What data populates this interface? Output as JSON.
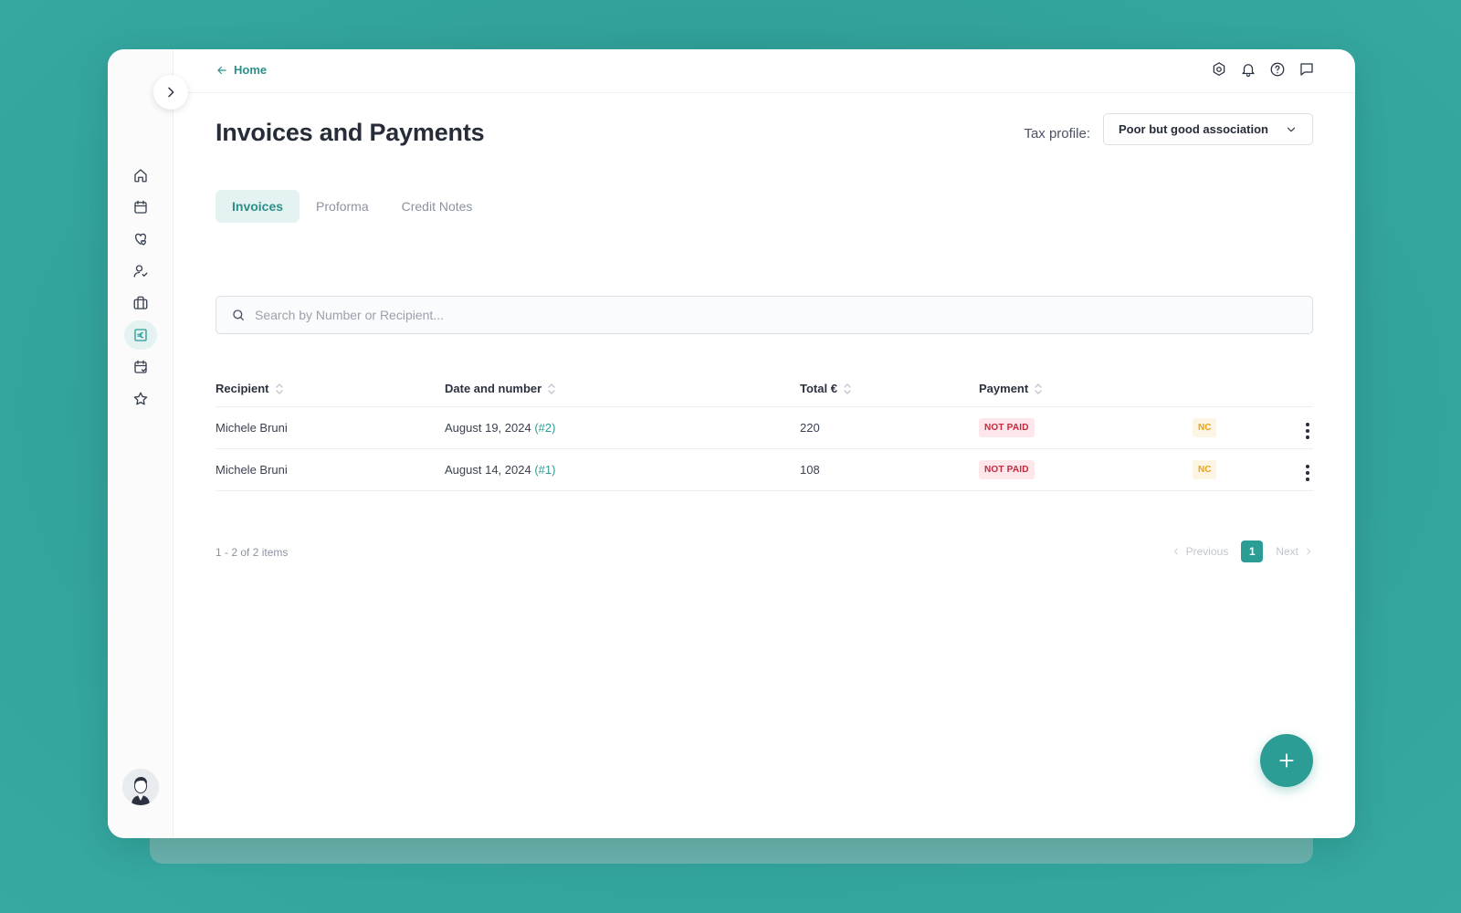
{
  "nav": {
    "home_label": "Home"
  },
  "page": {
    "title": "Invoices and Payments",
    "tax_profile_label": "Tax profile:",
    "tax_profile_value": "Poor but good association"
  },
  "tabs": [
    {
      "label": "Invoices",
      "active": true
    },
    {
      "label": "Proforma",
      "active": false
    },
    {
      "label": "Credit Notes",
      "active": false
    }
  ],
  "search": {
    "placeholder": "Search by Number or Recipient..."
  },
  "table": {
    "headers": [
      "Recipient",
      "Date and number",
      "Total €",
      "Payment"
    ],
    "rows": [
      {
        "recipient": "Michele Bruni",
        "date": "August 19, 2024",
        "number": "(#2)",
        "total": "220",
        "payment": "NOT PAID",
        "tag": "NC"
      },
      {
        "recipient": "Michele Bruni",
        "date": "August 14, 2024",
        "number": "(#1)",
        "total": "108",
        "payment": "NOT PAID",
        "tag": "NC"
      }
    ]
  },
  "pagination": {
    "count_text": "1 - 2 of 2 items",
    "previous": "Previous",
    "next": "Next",
    "current_page": "1"
  },
  "sidebar_icons": [
    "home-icon",
    "calendar-icon",
    "hearts-icon",
    "user-check-icon",
    "briefcase-icon",
    "euro-icon",
    "calendar-check-icon",
    "star-icon"
  ],
  "colors": {
    "accent": "#2b9d95",
    "background": "#33a59d",
    "badge_red_bg": "#fde7ea",
    "badge_red_text": "#c6283f",
    "badge_nc_bg": "#fdf5e3",
    "badge_nc_text": "#e9a21a"
  }
}
